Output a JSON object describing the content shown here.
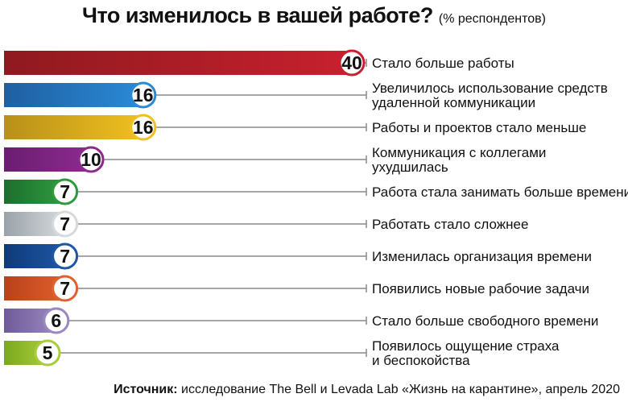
{
  "chart_data": {
    "type": "bar",
    "title": "Что изменилось в вашей работе?",
    "unit_note": "(% респондентов)",
    "categories": [
      "Стало больше работы",
      "Увеличилось использование средств удаленной коммуникации",
      "Работы и проектов стало меньше",
      "Коммуникация с коллегами ухудшилась",
      "Работа стала занимать больше времени",
      "Работать стало сложнее",
      "Изменилась организация времени",
      "Появились новые рабочие задачи",
      "Стало больше свободного времени",
      "Появилось ощущение страха и беспокойства"
    ],
    "label_lines": [
      [
        "Стало больше работы"
      ],
      [
        "Увеличилось использование средств",
        "удаленной коммуникации"
      ],
      [
        "Работы и проектов стало меньше"
      ],
      [
        "Коммуникация с коллегами",
        "ухудшилась"
      ],
      [
        "Работа стала занимать больше времени"
      ],
      [
        "Работать стало сложнее"
      ],
      [
        "Изменилась организация времени"
      ],
      [
        "Появились новые рабочие задачи"
      ],
      [
        "Стало больше свободного времени"
      ],
      [
        "Появилось ощущение страха",
        "и беспокойства"
      ]
    ],
    "values": [
      40,
      16,
      16,
      10,
      7,
      7,
      7,
      7,
      6,
      5
    ],
    "colors": [
      [
        "#8e1a1f",
        "#c8202e"
      ],
      [
        "#1f5fa0",
        "#2a8ad6"
      ],
      [
        "#b8901a",
        "#f0c020"
      ],
      [
        "#6a1e70",
        "#8c2a90"
      ],
      [
        "#1e6e2e",
        "#2e9a3e"
      ],
      [
        "#9aa2a8",
        "#d6dadd"
      ],
      [
        "#0f3a78",
        "#1e56a6"
      ],
      [
        "#b8401a",
        "#e0602e"
      ],
      [
        "#6e5a98",
        "#9a88c0"
      ],
      [
        "#7aa81e",
        "#a8cc3a"
      ]
    ],
    "xlim": [
      0,
      40
    ],
    "legend": "none",
    "grid": false
  },
  "source": {
    "label": "Источник:",
    "text": "исследование The Bell и Levada Lab «Жизнь на карантине», апрель 2020"
  }
}
